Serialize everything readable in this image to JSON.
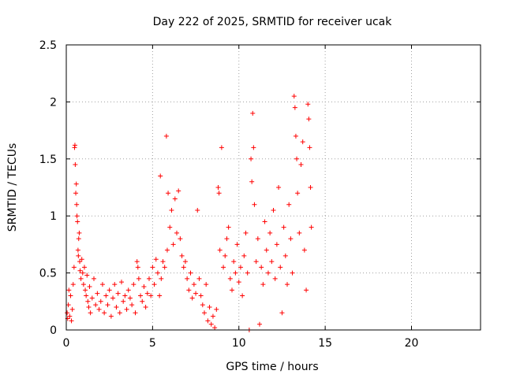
{
  "chart_data": {
    "type": "scatter",
    "title": "Day 222 of 2025, SRMTID for receiver ucak",
    "xlabel": "GPS time / hours",
    "ylabel": "SRMTID / TECUs",
    "xlim": [
      0,
      24
    ],
    "ylim": [
      0,
      2.5
    ],
    "xticks": [
      0,
      5,
      10,
      15,
      20
    ],
    "yticks": [
      0,
      0.5,
      1,
      1.5,
      2,
      2.5
    ],
    "xtick_labels": [
      "0",
      "5",
      "10",
      "15",
      "20"
    ],
    "ytick_labels": [
      "0",
      "0.5",
      "1",
      "1.5",
      "2",
      "2.5"
    ],
    "grid": true,
    "marker": "plus",
    "color": "#ff0000",
    "series": [
      {
        "name": "SRMTID",
        "points": [
          [
            0.05,
            0.15
          ],
          [
            0.08,
            0.1
          ],
          [
            0.12,
            0.22
          ],
          [
            0.15,
            0.35
          ],
          [
            0.2,
            0.12
          ],
          [
            0.25,
            0.3
          ],
          [
            0.3,
            0.08
          ],
          [
            0.35,
            0.18
          ],
          [
            0.4,
            0.4
          ],
          [
            0.45,
            0.55
          ],
          [
            0.48,
            1.6
          ],
          [
            0.5,
            1.62
          ],
          [
            0.52,
            1.45
          ],
          [
            0.55,
            1.2
          ],
          [
            0.58,
            1.28
          ],
          [
            0.6,
            1.1
          ],
          [
            0.62,
            1.0
          ],
          [
            0.65,
            0.95
          ],
          [
            0.68,
            0.7
          ],
          [
            0.7,
            0.65
          ],
          [
            0.72,
            0.8
          ],
          [
            0.75,
            0.85
          ],
          [
            0.78,
            0.6
          ],
          [
            0.8,
            0.52
          ],
          [
            0.85,
            0.45
          ],
          [
            0.9,
            0.62
          ],
          [
            0.95,
            0.5
          ],
          [
            1.0,
            0.4
          ],
          [
            1.05,
            0.55
          ],
          [
            1.1,
            0.35
          ],
          [
            1.15,
            0.3
          ],
          [
            1.2,
            0.48
          ],
          [
            1.25,
            0.25
          ],
          [
            1.3,
            0.2
          ],
          [
            1.35,
            0.38
          ],
          [
            1.4,
            0.15
          ],
          [
            1.5,
            0.28
          ],
          [
            1.6,
            0.45
          ],
          [
            1.7,
            0.22
          ],
          [
            1.8,
            0.32
          ],
          [
            1.9,
            0.18
          ],
          [
            2.0,
            0.25
          ],
          [
            2.1,
            0.4
          ],
          [
            2.2,
            0.15
          ],
          [
            2.3,
            0.3
          ],
          [
            2.4,
            0.22
          ],
          [
            2.5,
            0.35
          ],
          [
            2.6,
            0.12
          ],
          [
            2.7,
            0.28
          ],
          [
            2.8,
            0.4
          ],
          [
            2.9,
            0.2
          ],
          [
            3.0,
            0.32
          ],
          [
            3.1,
            0.15
          ],
          [
            3.2,
            0.42
          ],
          [
            3.3,
            0.25
          ],
          [
            3.4,
            0.3
          ],
          [
            3.5,
            0.18
          ],
          [
            3.6,
            0.35
          ],
          [
            3.7,
            0.28
          ],
          [
            3.8,
            0.22
          ],
          [
            3.9,
            0.4
          ],
          [
            4.0,
            0.15
          ],
          [
            4.1,
            0.6
          ],
          [
            4.15,
            0.55
          ],
          [
            4.2,
            0.45
          ],
          [
            4.3,
            0.3
          ],
          [
            4.4,
            0.25
          ],
          [
            4.5,
            0.38
          ],
          [
            4.6,
            0.2
          ],
          [
            4.7,
            0.32
          ],
          [
            4.8,
            0.45
          ],
          [
            4.9,
            0.3
          ],
          [
            5.0,
            0.55
          ],
          [
            5.1,
            0.4
          ],
          [
            5.2,
            0.62
          ],
          [
            5.3,
            0.5
          ],
          [
            5.4,
            0.3
          ],
          [
            5.45,
            1.35
          ],
          [
            5.5,
            0.45
          ],
          [
            5.6,
            0.6
          ],
          [
            5.7,
            0.55
          ],
          [
            5.8,
            1.7
          ],
          [
            5.85,
            0.7
          ],
          [
            5.9,
            1.2
          ],
          [
            6.0,
            0.9
          ],
          [
            6.1,
            1.05
          ],
          [
            6.2,
            0.75
          ],
          [
            6.3,
            1.15
          ],
          [
            6.4,
            0.85
          ],
          [
            6.5,
            1.22
          ],
          [
            6.6,
            0.8
          ],
          [
            6.7,
            0.65
          ],
          [
            6.8,
            0.55
          ],
          [
            6.9,
            0.6
          ],
          [
            7.0,
            0.45
          ],
          [
            7.1,
            0.35
          ],
          [
            7.2,
            0.5
          ],
          [
            7.3,
            0.28
          ],
          [
            7.4,
            0.4
          ],
          [
            7.5,
            0.32
          ],
          [
            7.6,
            1.05
          ],
          [
            7.7,
            0.45
          ],
          [
            7.8,
            0.3
          ],
          [
            7.9,
            0.22
          ],
          [
            8.0,
            0.15
          ],
          [
            8.1,
            0.4
          ],
          [
            8.2,
            0.08
          ],
          [
            8.3,
            0.2
          ],
          [
            8.4,
            0.05
          ],
          [
            8.5,
            0.12
          ],
          [
            8.6,
            0.02
          ],
          [
            8.7,
            0.18
          ],
          [
            8.8,
            1.25
          ],
          [
            8.85,
            1.2
          ],
          [
            8.9,
            0.7
          ],
          [
            9.0,
            1.6
          ],
          [
            9.1,
            0.55
          ],
          [
            9.2,
            0.65
          ],
          [
            9.3,
            0.8
          ],
          [
            9.4,
            0.9
          ],
          [
            9.5,
            0.45
          ],
          [
            9.6,
            0.35
          ],
          [
            9.7,
            0.6
          ],
          [
            9.8,
            0.5
          ],
          [
            9.9,
            0.75
          ],
          [
            10.0,
            0.42
          ],
          [
            10.1,
            0.55
          ],
          [
            10.2,
            0.3
          ],
          [
            10.3,
            0.65
          ],
          [
            10.4,
            0.85
          ],
          [
            10.5,
            0.5
          ],
          [
            10.6,
            0.0
          ],
          [
            10.7,
            1.5
          ],
          [
            10.75,
            1.3
          ],
          [
            10.8,
            1.9
          ],
          [
            10.85,
            1.6
          ],
          [
            10.9,
            1.1
          ],
          [
            11.0,
            0.6
          ],
          [
            11.1,
            0.8
          ],
          [
            11.2,
            0.05
          ],
          [
            11.3,
            0.55
          ],
          [
            11.4,
            0.4
          ],
          [
            11.5,
            0.95
          ],
          [
            11.6,
            0.7
          ],
          [
            11.7,
            0.5
          ],
          [
            11.8,
            0.85
          ],
          [
            11.9,
            0.6
          ],
          [
            12.0,
            1.05
          ],
          [
            12.1,
            0.45
          ],
          [
            12.2,
            0.75
          ],
          [
            12.3,
            1.25
          ],
          [
            12.4,
            0.55
          ],
          [
            12.5,
            0.15
          ],
          [
            12.6,
            0.9
          ],
          [
            12.7,
            0.65
          ],
          [
            12.8,
            0.4
          ],
          [
            12.9,
            1.1
          ],
          [
            13.0,
            0.8
          ],
          [
            13.1,
            0.5
          ],
          [
            13.2,
            2.05
          ],
          [
            13.25,
            1.95
          ],
          [
            13.3,
            1.7
          ],
          [
            13.35,
            1.5
          ],
          [
            13.4,
            1.2
          ],
          [
            13.5,
            0.85
          ],
          [
            13.6,
            1.45
          ],
          [
            13.7,
            1.65
          ],
          [
            13.8,
            0.7
          ],
          [
            13.9,
            0.35
          ],
          [
            14.0,
            1.98
          ],
          [
            14.05,
            1.85
          ],
          [
            14.1,
            1.6
          ],
          [
            14.15,
            1.25
          ],
          [
            14.2,
            0.9
          ]
        ]
      }
    ]
  }
}
